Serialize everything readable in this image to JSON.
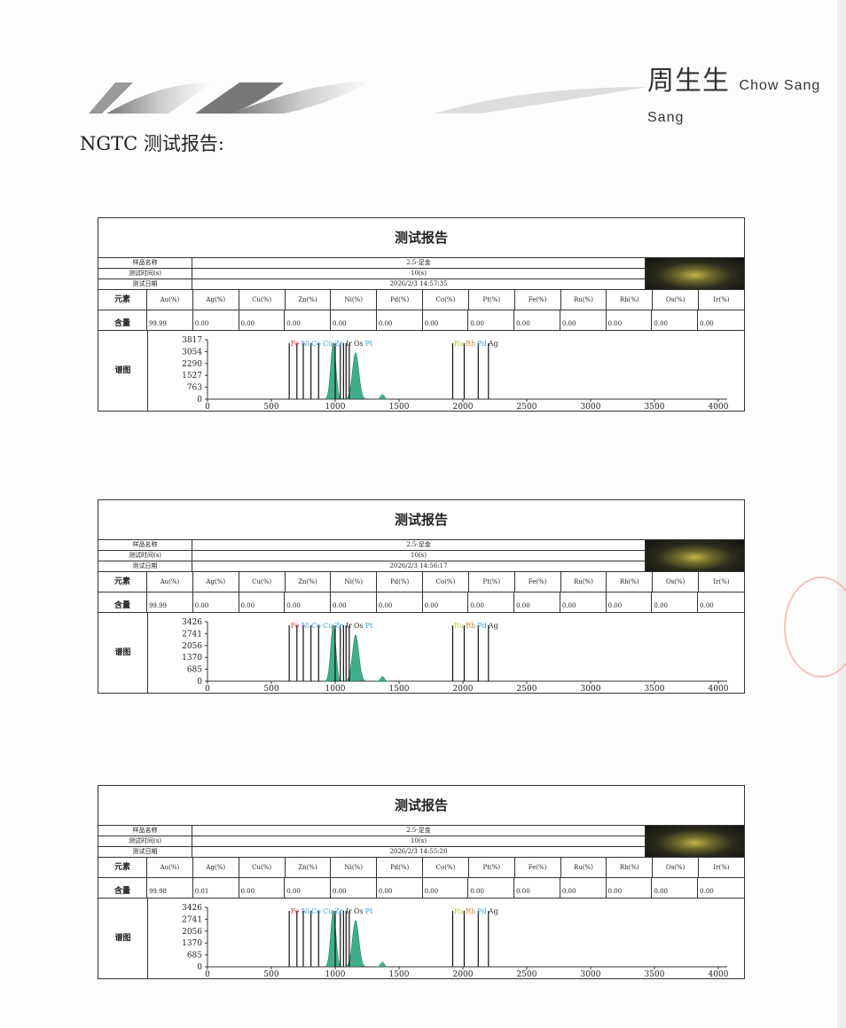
{
  "header": {
    "logo_cn": "周生生",
    "logo_en": "Chow Sang Sang",
    "heading": "NGTC 测试报告:"
  },
  "labels": {
    "title": "测试报告",
    "sample_name": "样品名称",
    "test_time": "测试时间(s)",
    "test_date": "测试日期",
    "element": "元素",
    "content": "含量",
    "spectrum": "谱图"
  },
  "elements": [
    "Au(%)",
    "Ag(%)",
    "Cu(%)",
    "Zn(%)",
    "Ni(%)",
    "Pd(%)",
    "Co(%)",
    "Pt(%)",
    "Fe(%)",
    "Ru(%)",
    "Rh(%)",
    "Os(%)",
    "Ir(%)"
  ],
  "reports": [
    {
      "sample": "2.5-足金",
      "time": "10(s)",
      "date": "2026/2/3 14:57:35",
      "values": [
        "99.99",
        "0.00",
        "0.00",
        "0.00",
        "0.00",
        "0.00",
        "0.00",
        "0.00",
        "0.00",
        "0.00",
        "0.00",
        "0.00",
        "0.00"
      ],
      "yticks": [
        "0",
        "763",
        "1527",
        "2290",
        "3054",
        "3817"
      ],
      "ymax": 3817
    },
    {
      "sample": "2.5-足金",
      "time": "10(s)",
      "date": "2026/2/3 14:56:17",
      "values": [
        "99.99",
        "0.00",
        "0.00",
        "0.00",
        "0.00",
        "0.00",
        "0.00",
        "0.00",
        "0.00",
        "0.00",
        "0.00",
        "0.00",
        "0.00"
      ],
      "yticks": [
        "0",
        "685",
        "1370",
        "2056",
        "2741",
        "3426"
      ],
      "ymax": 3426
    },
    {
      "sample": "2.5-足金",
      "time": "10(s)",
      "date": "2026/2/3 14:55:20",
      "values": [
        "99.98",
        "0.01",
        "0.00",
        "0.00",
        "0.00",
        "0.00",
        "0.00",
        "0.00",
        "0.00",
        "0.00",
        "0.00",
        "0.00",
        "0.00"
      ],
      "yticks": [
        "0",
        "685",
        "1370",
        "2056",
        "2741",
        "3426"
      ],
      "ymax": 3426
    }
  ],
  "chart_data": {
    "type": "line",
    "xlim": [
      0,
      4000
    ],
    "xticks": [
      "0",
      "500",
      "1000",
      "1500",
      "2000",
      "2500",
      "3000",
      "3500",
      "4000"
    ],
    "marker_lines": [
      640,
      700,
      750,
      810,
      870,
      1000,
      1040,
      1065,
      1085,
      1110,
      1920,
      2010,
      2120,
      2200
    ],
    "peak_labels": [
      {
        "text": "Fe",
        "x": 650,
        "color": "#d04040"
      },
      {
        "text": "Ni",
        "x": 705,
        "color": "#40a0d0"
      },
      {
        "text": "Co",
        "x": 750,
        "color": "#40a0d0"
      },
      {
        "text": "Cu",
        "x": 800,
        "color": "#40a0d0"
      },
      {
        "text": "Zn",
        "x": 850,
        "color": "#40a0d0"
      },
      {
        "text": "Ir",
        "x": 1010,
        "color": "#333333"
      },
      {
        "text": "Os",
        "x": 1050,
        "color": "#333333"
      },
      {
        "text": "Pt",
        "x": 1090,
        "color": "#40a0d0"
      },
      {
        "text": "Ru",
        "x": 1930,
        "color": "#b0d040"
      },
      {
        "text": "Rh",
        "x": 2020,
        "color": "#d08040"
      },
      {
        "text": "Pd",
        "x": 2110,
        "color": "#40a0d0"
      },
      {
        "text": "Ag",
        "x": 2200,
        "color": "#333333"
      }
    ],
    "peaks": [
      {
        "center": 985,
        "height_frac": 0.95,
        "width": 20
      },
      {
        "center": 1160,
        "height_frac": 0.78,
        "width": 25
      },
      {
        "center": 1370,
        "height_frac": 0.08,
        "width": 15
      }
    ],
    "peak_color": "#3fae8c"
  }
}
